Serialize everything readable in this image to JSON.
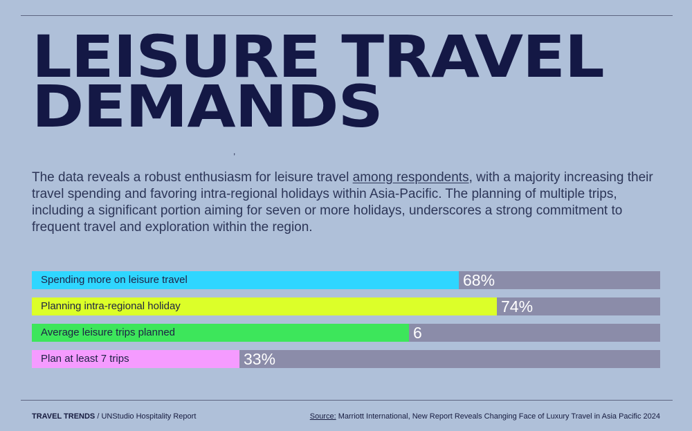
{
  "title_lines": [
    "LEISURE TRAVEL",
    "DEMANDS"
  ],
  "stray_mark": ",",
  "intro": {
    "before": "The data reveals a robust enthusiasm for leisure travel ",
    "link": "among respondents",
    "after": ", with a majority increasing their travel spending and favoring intra-regional holidays within Asia-Pacific. The planning of multiple trips, including a significant portion aiming for seven or more holidays, underscores a strong commitment to frequent travel and exploration within the region."
  },
  "chart_data": {
    "type": "bar",
    "orientation": "horizontal",
    "title": "",
    "xlabel": "",
    "ylabel": "",
    "categories": [
      "Spending more on leisure travel",
      "Planning intra-regional holiday",
      "Average leisure trips planned",
      "Plan at least 7 trips"
    ],
    "values": [
      68,
      74,
      6,
      33
    ],
    "value_labels": [
      "68%",
      "74%",
      "6",
      "33%"
    ],
    "fill_fractions": [
      0.68,
      0.74,
      0.6,
      0.33
    ],
    "colors": [
      "#2fd6ff",
      "#dcff29",
      "#3de65b",
      "#f59bff"
    ],
    "track_color": "#8b8ca9",
    "value_color": "#ffffff"
  },
  "footer": {
    "brand": "TRAVEL TRENDS",
    "separator": " / ",
    "report": "UNStudio Hospitality Report",
    "source_label": "Source:",
    "source_text": " Marriott International, New Report Reveals Changing Face of Luxury Travel in Asia Pacific 2024"
  }
}
